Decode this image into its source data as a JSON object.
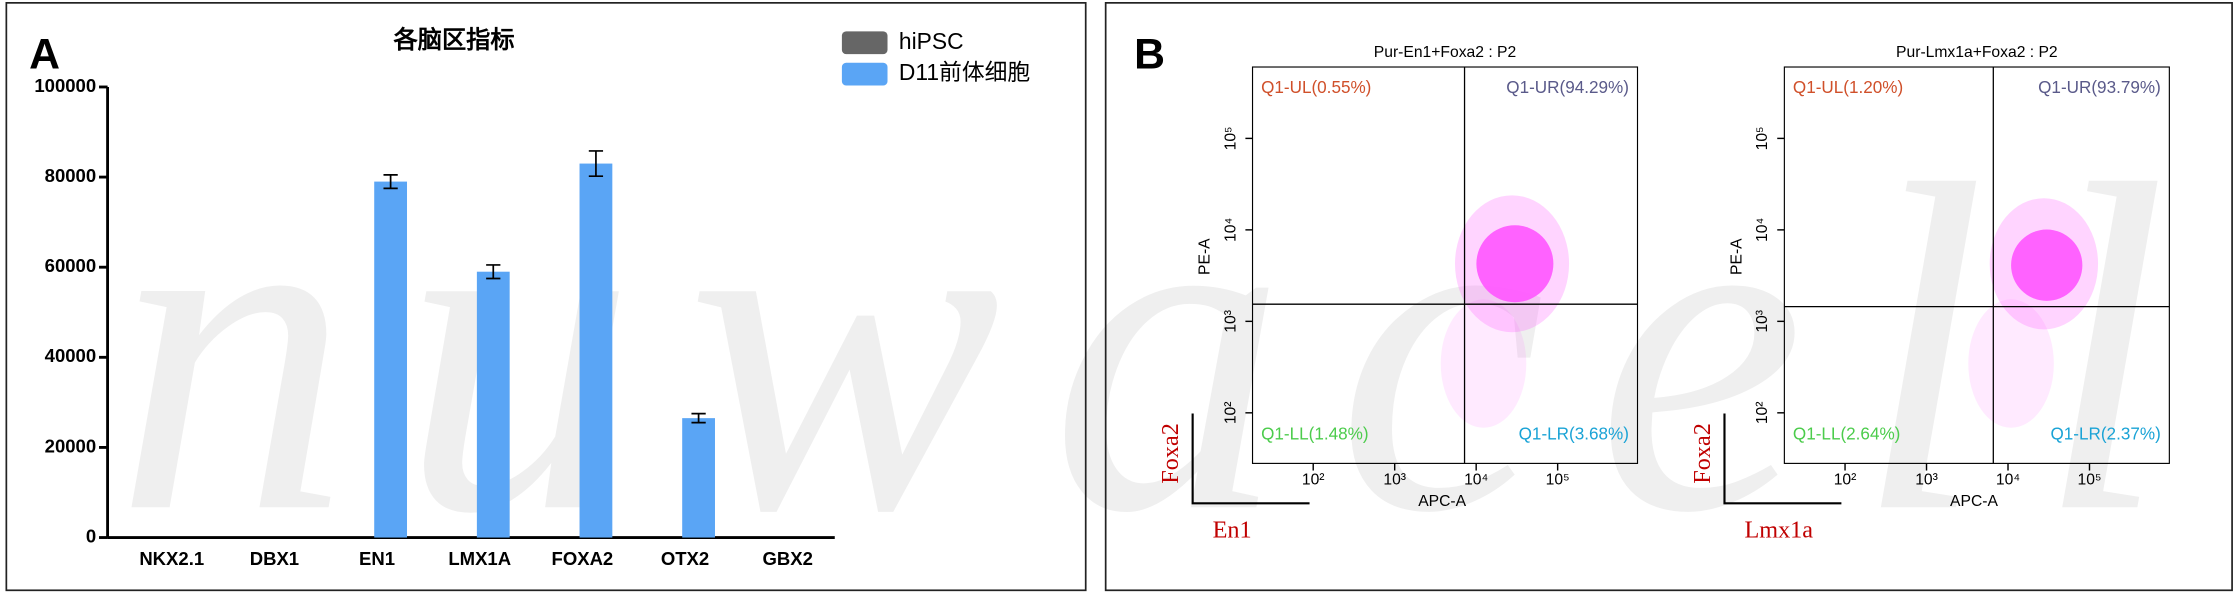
{
  "watermark": "nuwacell",
  "chart_data": [
    {
      "type": "bar",
      "panel": "A",
      "title": "各脑区指标",
      "categories": [
        "NKX2.1",
        "DBX1",
        "EN1",
        "LMX1A",
        "FOXA2",
        "OTX2",
        "GBX2"
      ],
      "series": [
        {
          "name": "hiPSC",
          "color": "#666666",
          "values": [
            0,
            0,
            0,
            0,
            0,
            0,
            0
          ]
        },
        {
          "name": "D11前体细胞",
          "color": "#5aa5f5",
          "values": [
            0,
            0,
            79000,
            59000,
            83000,
            26500,
            0
          ],
          "errors": [
            null,
            null,
            1500,
            1500,
            2800,
            1000,
            null
          ]
        }
      ],
      "ylim": [
        0,
        100000
      ],
      "yticks": [
        0,
        20000,
        40000,
        60000,
        80000,
        100000
      ]
    },
    {
      "type": "scatter",
      "panel": "B",
      "title": "Pur-En1+Foxa2 : P2",
      "xlabel": "APC-A",
      "ylabel": "PE-A",
      "xscale": "log",
      "yscale": "log",
      "color": "#ff55ff",
      "xlim": [
        18,
        955000
      ],
      "ylim": [
        28,
        603000
      ],
      "xticks": [
        {
          "value": 100,
          "label": "10²"
        },
        {
          "value": 1000,
          "label": "10³"
        },
        {
          "value": 10000,
          "label": "10⁴"
        },
        {
          "value": 100000,
          "label": "10⁵"
        }
      ],
      "yticks": [
        {
          "value": 100,
          "label": "10²"
        },
        {
          "value": 1000,
          "label": "10³"
        },
        {
          "value": 10000,
          "label": "10⁴"
        },
        {
          "value": 100000,
          "label": "10⁵"
        }
      ],
      "gate": [
        7200,
        1540
      ],
      "quadrant_values": [
        0.55,
        94.29,
        1.48,
        3.68
      ],
      "value_labels": [
        "Q1-UL(0.55%)",
        "Q1-UR(94.29%)",
        "Q1-LL(1.48%)",
        "Q1-LR(3.68%)"
      ],
      "quadrant_colors": [
        "#d0502a",
        "#5a5a8a",
        "#4ccc4c",
        "#1aa3d6"
      ],
      "marker_y": "Foxa2",
      "marker_x": "En1"
    },
    {
      "type": "scatter",
      "title": "Pur-Lmx1a+Foxa2 : P2",
      "xlabel": "APC-A",
      "ylabel": "PE-A",
      "xscale": "log",
      "yscale": "log",
      "color": "#ff55ff",
      "xlim": [
        18,
        955000
      ],
      "ylim": [
        28,
        603000
      ],
      "xticks": [
        {
          "value": 100,
          "label": "10²"
        },
        {
          "value": 1000,
          "label": "10³"
        },
        {
          "value": 10000,
          "label": "10⁴"
        },
        {
          "value": 100000,
          "label": "10⁵"
        }
      ],
      "yticks": [
        {
          "value": 100,
          "label": "10²"
        },
        {
          "value": 1000,
          "label": "10³"
        },
        {
          "value": 10000,
          "label": "10⁴"
        },
        {
          "value": 100000,
          "label": "10⁵"
        }
      ],
      "gate": [
        6600,
        1450
      ],
      "quadrant_values": [
        1.2,
        93.79,
        2.64,
        2.37
      ],
      "value_labels": [
        "Q1-UL(1.20%)",
        "Q1-UR(93.79%)",
        "Q1-LL(2.64%)",
        "Q1-LR(2.37%)"
      ],
      "quadrant_colors": [
        "#d0502a",
        "#5a5a8a",
        "#4ccc4c",
        "#1aa3d6"
      ],
      "marker_y": "Foxa2",
      "marker_x": "Lmx1a"
    }
  ]
}
